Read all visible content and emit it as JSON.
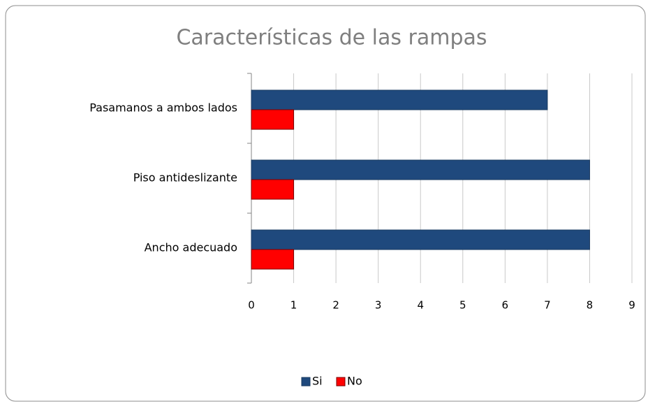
{
  "chart_data": {
    "type": "hbar",
    "title": "Características de las rampas",
    "categories": [
      "Pasamanos a ambos lados",
      "Piso antideslizante",
      "Ancho adecuado"
    ],
    "series": [
      {
        "name": "Si",
        "color": "#1f497d",
        "values": [
          7,
          8,
          8
        ]
      },
      {
        "name": "No",
        "color": "#ff0000",
        "values": [
          1,
          1,
          1
        ]
      }
    ],
    "xlim": [
      0,
      9
    ],
    "xticks": [
      0,
      1,
      2,
      3,
      4,
      5,
      6,
      7,
      8,
      9
    ],
    "grid": true,
    "legend": "bottom"
  }
}
